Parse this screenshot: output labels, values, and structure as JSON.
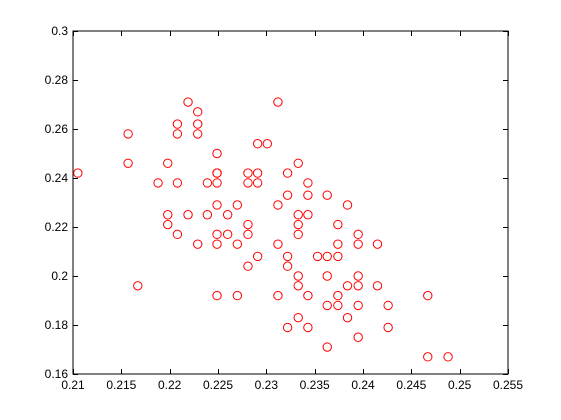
{
  "chart_data": {
    "type": "scatter",
    "title": "",
    "xlabel": "",
    "ylabel": "",
    "xlim": [
      0.21,
      0.255
    ],
    "ylim": [
      0.16,
      0.3
    ],
    "x_ticks": [
      "0.21",
      "0.215",
      "0.22",
      "0.225",
      "0.23",
      "0.235",
      "0.24",
      "0.245",
      "0.25",
      "0.255"
    ],
    "y_ticks": [
      "0.16",
      "0.18",
      "0.2",
      "0.22",
      "0.24",
      "0.26",
      "0.28",
      "0.3"
    ],
    "grid": false,
    "marker": "circle-open",
    "color": "#ff0000",
    "series": [
      {
        "points": [
          [
            0.2105,
            0.242
          ],
          [
            0.2157,
            0.258
          ],
          [
            0.2157,
            0.246
          ],
          [
            0.2167,
            0.196
          ],
          [
            0.2188,
            0.238
          ],
          [
            0.2198,
            0.246
          ],
          [
            0.2198,
            0.225
          ],
          [
            0.2198,
            0.221
          ],
          [
            0.2208,
            0.262
          ],
          [
            0.2208,
            0.258
          ],
          [
            0.2208,
            0.238
          ],
          [
            0.2208,
            0.217
          ],
          [
            0.2219,
            0.271
          ],
          [
            0.2219,
            0.225
          ],
          [
            0.2229,
            0.267
          ],
          [
            0.2229,
            0.262
          ],
          [
            0.2229,
            0.258
          ],
          [
            0.2229,
            0.213
          ],
          [
            0.2239,
            0.238
          ],
          [
            0.2239,
            0.225
          ],
          [
            0.2249,
            0.25
          ],
          [
            0.2249,
            0.242
          ],
          [
            0.2249,
            0.242
          ],
          [
            0.2249,
            0.238
          ],
          [
            0.2249,
            0.229
          ],
          [
            0.2249,
            0.217
          ],
          [
            0.2249,
            0.213
          ],
          [
            0.2249,
            0.192
          ],
          [
            0.226,
            0.225
          ],
          [
            0.226,
            0.217
          ],
          [
            0.227,
            0.229
          ],
          [
            0.227,
            0.213
          ],
          [
            0.227,
            0.192
          ],
          [
            0.2281,
            0.242
          ],
          [
            0.2281,
            0.238
          ],
          [
            0.2281,
            0.221
          ],
          [
            0.2281,
            0.217
          ],
          [
            0.2281,
            0.204
          ],
          [
            0.2291,
            0.254
          ],
          [
            0.2291,
            0.242
          ],
          [
            0.2291,
            0.238
          ],
          [
            0.2291,
            0.208
          ],
          [
            0.2301,
            0.254
          ],
          [
            0.2312,
            0.271
          ],
          [
            0.2312,
            0.229
          ],
          [
            0.2312,
            0.213
          ],
          [
            0.2312,
            0.192
          ],
          [
            0.2322,
            0.242
          ],
          [
            0.2322,
            0.233
          ],
          [
            0.2322,
            0.208
          ],
          [
            0.2322,
            0.204
          ],
          [
            0.2322,
            0.179
          ],
          [
            0.2333,
            0.246
          ],
          [
            0.2333,
            0.225
          ],
          [
            0.2333,
            0.221
          ],
          [
            0.2333,
            0.217
          ],
          [
            0.2333,
            0.2
          ],
          [
            0.2333,
            0.196
          ],
          [
            0.2333,
            0.183
          ],
          [
            0.2343,
            0.238
          ],
          [
            0.2343,
            0.233
          ],
          [
            0.2343,
            0.225
          ],
          [
            0.2343,
            0.192
          ],
          [
            0.2343,
            0.179
          ],
          [
            0.2353,
            0.208
          ],
          [
            0.2363,
            0.233
          ],
          [
            0.2363,
            0.208
          ],
          [
            0.2363,
            0.2
          ],
          [
            0.2363,
            0.188
          ],
          [
            0.2363,
            0.171
          ],
          [
            0.2374,
            0.221
          ],
          [
            0.2374,
            0.213
          ],
          [
            0.2374,
            0.208
          ],
          [
            0.2374,
            0.192
          ],
          [
            0.2374,
            0.188
          ],
          [
            0.2384,
            0.229
          ],
          [
            0.2384,
            0.196
          ],
          [
            0.2384,
            0.183
          ],
          [
            0.2395,
            0.217
          ],
          [
            0.2395,
            0.213
          ],
          [
            0.2395,
            0.2
          ],
          [
            0.2395,
            0.196
          ],
          [
            0.2395,
            0.188
          ],
          [
            0.2395,
            0.175
          ],
          [
            0.2415,
            0.213
          ],
          [
            0.2415,
            0.196
          ],
          [
            0.2426,
            0.188
          ],
          [
            0.2426,
            0.179
          ],
          [
            0.2467,
            0.192
          ],
          [
            0.2467,
            0.167
          ],
          [
            0.2488,
            0.167
          ]
        ]
      }
    ]
  }
}
